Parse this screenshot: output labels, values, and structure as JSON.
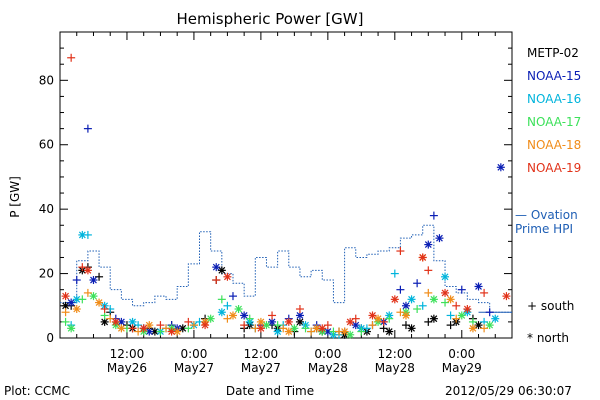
{
  "chart_data": {
    "type": "scatter",
    "title": "Hemispheric Power [GW]",
    "xlabel": "Date and Time",
    "ylabel": "P [GW]",
    "ylim": [
      0,
      95
    ],
    "yticks": [
      0,
      20,
      40,
      60,
      80
    ],
    "xlim": [
      0,
      81
    ],
    "xticks": [
      {
        "x": 12,
        "line1": "12:00",
        "line2": "May26"
      },
      {
        "x": 24,
        "line1": "0:00",
        "line2": "May27"
      },
      {
        "x": 36,
        "line1": "12:00",
        "line2": "May27"
      },
      {
        "x": 48,
        "line1": "0:00",
        "line2": "May28"
      },
      {
        "x": 60,
        "line1": "12:00",
        "line2": "May28"
      },
      {
        "x": 72,
        "line1": "0:00",
        "line2": "May29"
      }
    ],
    "legend_location": "right",
    "series": [
      {
        "name": "METP-02",
        "color": "#000000",
        "south": [
          [
            2,
            10
          ],
          [
            5,
            22
          ],
          [
            7,
            19
          ],
          [
            9,
            8
          ],
          [
            12,
            4
          ],
          [
            16,
            3
          ],
          [
            20,
            4
          ],
          [
            26,
            6
          ],
          [
            28,
            18
          ],
          [
            33,
            3
          ],
          [
            38,
            4
          ],
          [
            42,
            2
          ],
          [
            46,
            3
          ],
          [
            50,
            2
          ],
          [
            54,
            3
          ],
          [
            58,
            3
          ],
          [
            62,
            4
          ],
          [
            66,
            5
          ],
          [
            70,
            4
          ],
          [
            74,
            6
          ]
        ],
        "north": [
          [
            1,
            10
          ],
          [
            4,
            21
          ],
          [
            8,
            5
          ],
          [
            13,
            3
          ],
          [
            17,
            2
          ],
          [
            22,
            3
          ],
          [
            29,
            21
          ],
          [
            34,
            4
          ],
          [
            39,
            3
          ],
          [
            43,
            5
          ],
          [
            47,
            2
          ],
          [
            51,
            1
          ],
          [
            55,
            2
          ],
          [
            59,
            2
          ],
          [
            63,
            3
          ],
          [
            67,
            6
          ],
          [
            71,
            5
          ],
          [
            75,
            4
          ]
        ]
      },
      {
        "name": "NOAA-15",
        "color": "#0a1eb4",
        "south": [
          [
            3,
            18
          ],
          [
            5,
            65
          ],
          [
            10,
            6
          ],
          [
            15,
            3
          ],
          [
            20,
            4
          ],
          [
            26,
            5
          ],
          [
            31,
            13
          ],
          [
            36,
            4
          ],
          [
            41,
            6
          ],
          [
            46,
            4
          ],
          [
            51,
            2
          ],
          [
            56,
            4
          ],
          [
            61,
            15
          ],
          [
            64,
            17
          ],
          [
            67,
            38
          ],
          [
            72,
            15
          ],
          [
            77,
            8
          ]
        ],
        "north": [
          [
            2,
            11
          ],
          [
            6,
            18
          ],
          [
            11,
            5
          ],
          [
            16,
            2
          ],
          [
            21,
            3
          ],
          [
            28,
            22
          ],
          [
            33,
            7
          ],
          [
            38,
            5
          ],
          [
            43,
            7
          ],
          [
            48,
            2
          ],
          [
            53,
            4
          ],
          [
            58,
            5
          ],
          [
            62,
            10
          ],
          [
            66,
            29
          ],
          [
            68,
            31
          ],
          [
            75,
            16
          ],
          [
            79,
            53
          ]
        ]
      },
      {
        "name": "NOAA-16",
        "color": "#00b4dc",
        "south": [
          [
            2,
            4
          ],
          [
            5,
            32
          ],
          [
            9,
            9
          ],
          [
            14,
            4
          ],
          [
            19,
            3
          ],
          [
            25,
            5
          ],
          [
            30,
            10
          ],
          [
            35,
            3
          ],
          [
            40,
            4
          ],
          [
            45,
            2
          ],
          [
            50,
            1
          ],
          [
            55,
            3
          ],
          [
            60,
            20
          ],
          [
            65,
            10
          ],
          [
            70,
            7
          ],
          [
            76,
            5
          ]
        ],
        "north": [
          [
            3,
            12
          ],
          [
            4,
            32
          ],
          [
            8,
            10
          ],
          [
            13,
            5
          ],
          [
            18,
            2
          ],
          [
            24,
            4
          ],
          [
            29,
            8
          ],
          [
            34,
            5
          ],
          [
            39,
            2
          ],
          [
            44,
            4
          ],
          [
            49,
            1
          ],
          [
            54,
            3
          ],
          [
            59,
            7
          ],
          [
            63,
            12
          ],
          [
            69,
            19
          ],
          [
            73,
            8
          ],
          [
            78,
            6
          ]
        ]
      },
      {
        "name": "NOAA-17",
        "color": "#3ce15a",
        "south": [
          [
            1,
            5
          ],
          [
            4,
            12
          ],
          [
            8,
            7
          ],
          [
            12,
            3
          ],
          [
            18,
            2
          ],
          [
            23,
            3
          ],
          [
            29,
            12
          ],
          [
            34,
            6
          ],
          [
            39,
            4
          ],
          [
            44,
            3
          ],
          [
            49,
            2
          ],
          [
            54,
            2
          ],
          [
            59,
            6
          ],
          [
            64,
            9
          ],
          [
            69,
            11
          ],
          [
            74,
            5
          ]
        ],
        "north": [
          [
            2,
            3
          ],
          [
            6,
            13
          ],
          [
            10,
            4
          ],
          [
            15,
            2
          ],
          [
            20,
            3
          ],
          [
            27,
            6
          ],
          [
            32,
            9
          ],
          [
            37,
            4
          ],
          [
            42,
            3
          ],
          [
            47,
            2
          ],
          [
            52,
            1
          ],
          [
            57,
            5
          ],
          [
            62,
            8
          ],
          [
            67,
            12
          ],
          [
            72,
            7
          ],
          [
            77,
            4
          ]
        ]
      },
      {
        "name": "NOAA-18",
        "color": "#f08c19",
        "south": [
          [
            1,
            8
          ],
          [
            5,
            14
          ],
          [
            9,
            6
          ],
          [
            14,
            2
          ],
          [
            19,
            3
          ],
          [
            24,
            4
          ],
          [
            30,
            6
          ],
          [
            35,
            3
          ],
          [
            40,
            3
          ],
          [
            45,
            2
          ],
          [
            50,
            2
          ],
          [
            56,
            4
          ],
          [
            61,
            8
          ],
          [
            66,
            14
          ],
          [
            71,
            6
          ],
          [
            76,
            3
          ]
        ],
        "north": [
          [
            3,
            9
          ],
          [
            7,
            11
          ],
          [
            11,
            3
          ],
          [
            16,
            4
          ],
          [
            21,
            2
          ],
          [
            26,
            5
          ],
          [
            31,
            7
          ],
          [
            36,
            5
          ],
          [
            41,
            2
          ],
          [
            46,
            3
          ],
          [
            51,
            2
          ],
          [
            57,
            6
          ],
          [
            62,
            7
          ],
          [
            65,
            25
          ],
          [
            70,
            12
          ],
          [
            74,
            3
          ]
        ]
      },
      {
        "name": "NOAA-19",
        "color": "#e13219",
        "south": [
          [
            2,
            87
          ],
          [
            4,
            22
          ],
          [
            8,
            9
          ],
          [
            13,
            3
          ],
          [
            18,
            4
          ],
          [
            23,
            5
          ],
          [
            28,
            18
          ],
          [
            33,
            4
          ],
          [
            38,
            7
          ],
          [
            43,
            9
          ],
          [
            48,
            4
          ],
          [
            53,
            6
          ],
          [
            58,
            5
          ],
          [
            61,
            27
          ],
          [
            66,
            21
          ],
          [
            71,
            10
          ],
          [
            76,
            14
          ]
        ],
        "north": [
          [
            1,
            13
          ],
          [
            5,
            21
          ],
          [
            10,
            5
          ],
          [
            15,
            3
          ],
          [
            20,
            2
          ],
          [
            26,
            4
          ],
          [
            30,
            19
          ],
          [
            36,
            3
          ],
          [
            41,
            5
          ],
          [
            47,
            3
          ],
          [
            52,
            5
          ],
          [
            56,
            7
          ],
          [
            60,
            12
          ],
          [
            65,
            25
          ],
          [
            69,
            14
          ],
          [
            73,
            9
          ],
          [
            80,
            13
          ]
        ]
      }
    ],
    "ovation": {
      "name": "Ovation Prime HPI",
      "color": "#1f5fb5",
      "x": [
        0,
        3,
        5,
        7,
        9,
        11,
        13,
        15,
        17,
        19,
        21,
        23,
        25,
        27,
        29,
        31,
        33,
        35,
        37,
        39,
        41,
        43,
        45,
        47,
        49,
        51,
        53,
        55,
        57,
        59,
        61,
        63,
        65,
        67,
        69,
        71,
        73,
        75,
        77,
        79,
        81
      ],
      "y": [
        11,
        24,
        27,
        22,
        15,
        12,
        10,
        11,
        13,
        12,
        16,
        23,
        33,
        27,
        20,
        17,
        13,
        25,
        22,
        27,
        22,
        19,
        21,
        18,
        11,
        28,
        25,
        26,
        27,
        28,
        31,
        32,
        35,
        24,
        16,
        14,
        12,
        11,
        8,
        8,
        8
      ]
    },
    "marker_key": {
      "south_label": "+ south",
      "north_label": "* north"
    }
  },
  "legend_extra": {
    "ovation_line1": "— Ovation",
    "ovation_line2": "Prime HPI"
  },
  "footer": {
    "credit": "Plot: CCMC",
    "timestamp": "2012/05/29 06:30:07"
  },
  "colors": {
    "axis": "#000000",
    "ovation": "#1f5fb5"
  }
}
